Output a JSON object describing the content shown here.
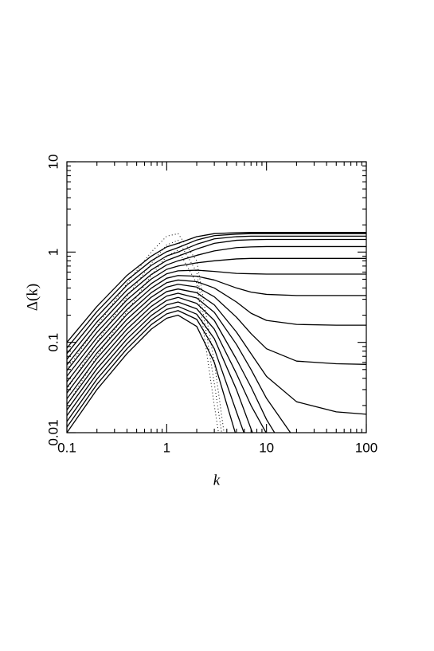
{
  "chart_data": {
    "type": "line",
    "xlabel": "k",
    "ylabel": "Δ(k)",
    "xscale": "log",
    "yscale": "log",
    "xlim": [
      0.1,
      100
    ],
    "ylim": [
      0.01,
      10
    ],
    "xticks": [
      0.1,
      1,
      10,
      100
    ],
    "yticks": [
      0.01,
      0.1,
      1,
      10
    ],
    "xminorticks": [
      0.2,
      0.3,
      0.4,
      0.5,
      0.6,
      0.7,
      0.8,
      0.9,
      2,
      3,
      4,
      5,
      6,
      7,
      8,
      9,
      20,
      30,
      40,
      50,
      60,
      70,
      80,
      90
    ],
    "yminorticks": [
      0.02,
      0.03,
      0.04,
      0.05,
      0.06,
      0.07,
      0.08,
      0.09,
      0.2,
      0.3,
      0.4,
      0.5,
      0.6,
      0.7,
      0.8,
      0.9,
      2,
      3,
      4,
      5,
      6,
      7,
      8,
      9
    ],
    "x": [
      0.1,
      0.2,
      0.4,
      0.7,
      1,
      1.3,
      2,
      3,
      5,
      7,
      10,
      20,
      50,
      100
    ],
    "series": [
      {
        "color": "#000000",
        "style": "solid",
        "values": [
          0.01,
          0.03,
          0.075,
          0.14,
          0.185,
          0.2,
          0.15,
          0.06,
          0.009,
          null,
          null,
          null,
          null,
          null
        ]
      },
      {
        "color": "#000000",
        "style": "solid",
        "values": [
          0.0115,
          0.0343,
          0.085,
          0.157,
          0.207,
          0.225,
          0.18,
          0.085,
          0.017,
          0.006,
          null,
          null,
          null,
          null
        ]
      },
      {
        "color": "#000000",
        "style": "solid",
        "values": [
          0.0133,
          0.0391,
          0.0963,
          0.177,
          0.232,
          0.25,
          0.205,
          0.11,
          0.03,
          0.011,
          0.004,
          null,
          null,
          null
        ]
      },
      {
        "color": "#000000",
        "style": "solid",
        "values": [
          0.0154,
          0.0447,
          0.109,
          0.198,
          0.26,
          0.28,
          0.235,
          0.14,
          0.045,
          0.02,
          0.0098,
          0.002,
          null,
          null
        ]
      },
      {
        "color": "#000000",
        "style": "solid",
        "values": [
          0.0178,
          0.051,
          0.124,
          0.223,
          0.291,
          0.315,
          0.27,
          0.175,
          0.065,
          0.032,
          0.014,
          0.004,
          null,
          null
        ]
      },
      {
        "color": "#000000",
        "style": "solid",
        "values": [
          0.0205,
          0.0583,
          0.14,
          0.25,
          0.326,
          0.35,
          0.31,
          0.215,
          0.095,
          0.05,
          0.024,
          0.008,
          null,
          null
        ]
      },
      {
        "color": "#000000",
        "style": "solid",
        "values": [
          0.0237,
          0.0665,
          0.159,
          0.281,
          0.365,
          0.39,
          0.355,
          0.26,
          0.13,
          0.075,
          0.042,
          0.022,
          0.017,
          0.016
        ]
      },
      {
        "color": "#000000",
        "style": "solid",
        "values": [
          0.0274,
          0.076,
          0.18,
          0.316,
          0.409,
          0.44,
          0.41,
          0.32,
          0.19,
          0.125,
          0.085,
          0.062,
          0.058,
          0.057
        ]
      },
      {
        "color": "#000000",
        "style": "solid",
        "values": [
          0.0316,
          0.0868,
          0.204,
          0.355,
          0.458,
          0.49,
          0.47,
          0.4,
          0.28,
          0.21,
          0.175,
          0.158,
          0.155,
          0.155
        ]
      },
      {
        "color": "#000000",
        "style": "solid",
        "values": [
          0.0365,
          0.0991,
          0.231,
          0.398,
          0.513,
          0.55,
          0.54,
          0.49,
          0.4,
          0.36,
          0.34,
          0.33,
          0.33,
          0.33
        ]
      },
      {
        "color": "#000000",
        "style": "solid",
        "values": [
          0.0422,
          0.113,
          0.262,
          0.447,
          0.575,
          0.62,
          0.63,
          0.61,
          0.58,
          0.575,
          0.57,
          0.57,
          0.57,
          0.57
        ]
      },
      {
        "color": "#000000",
        "style": "solid",
        "values": [
          0.0487,
          0.129,
          0.296,
          0.502,
          0.644,
          0.7,
          0.76,
          0.8,
          0.84,
          0.85,
          0.85,
          0.85,
          0.85,
          0.85
        ]
      },
      {
        "color": "#000000",
        "style": "solid",
        "values": [
          0.0562,
          0.147,
          0.336,
          0.564,
          0.721,
          0.8,
          0.92,
          1.03,
          1.12,
          1.14,
          1.15,
          1.15,
          1.15,
          1.15
        ]
      },
      {
        "color": "#000000",
        "style": "solid",
        "values": [
          0.0649,
          0.168,
          0.38,
          0.633,
          0.808,
          0.9,
          1.08,
          1.25,
          1.35,
          1.37,
          1.38,
          1.38,
          1.38,
          1.38
        ]
      },
      {
        "color": "#000000",
        "style": "solid",
        "values": [
          0.075,
          0.192,
          0.431,
          0.711,
          0.905,
          1.0,
          1.22,
          1.4,
          1.48,
          1.5,
          1.5,
          1.5,
          1.5,
          1.5
        ]
      },
      {
        "color": "#000000",
        "style": "solid",
        "values": [
          0.0866,
          0.219,
          0.488,
          0.8,
          1.01,
          1.12,
          1.36,
          1.52,
          1.58,
          1.6,
          1.6,
          1.6,
          1.6,
          1.6
        ]
      },
      {
        "color": "#000000",
        "style": "solid",
        "values": [
          0.1,
          0.25,
          0.552,
          0.9,
          1.14,
          1.25,
          1.48,
          1.6,
          1.64,
          1.65,
          1.65,
          1.65,
          1.65,
          1.65
        ]
      },
      {
        "color": "#000000",
        "style": "dotted",
        "values": [
          0.05,
          0.15,
          0.45,
          1.0,
          1.5,
          1.6,
          0.8,
          0.06,
          0.001,
          null,
          null,
          null,
          null,
          null
        ]
      },
      {
        "color": "#000000",
        "style": "dotted",
        "values": [
          0.03,
          0.1,
          0.32,
          0.75,
          1.2,
          1.35,
          0.6,
          0.035,
          0.0008,
          null,
          null,
          null,
          null,
          null
        ]
      },
      {
        "color": "#000000",
        "style": "dotted",
        "values": [
          0.02,
          0.07,
          0.22,
          0.55,
          0.9,
          1.05,
          0.45,
          0.02,
          0.0005,
          null,
          null,
          null,
          null,
          null
        ]
      }
    ]
  }
}
